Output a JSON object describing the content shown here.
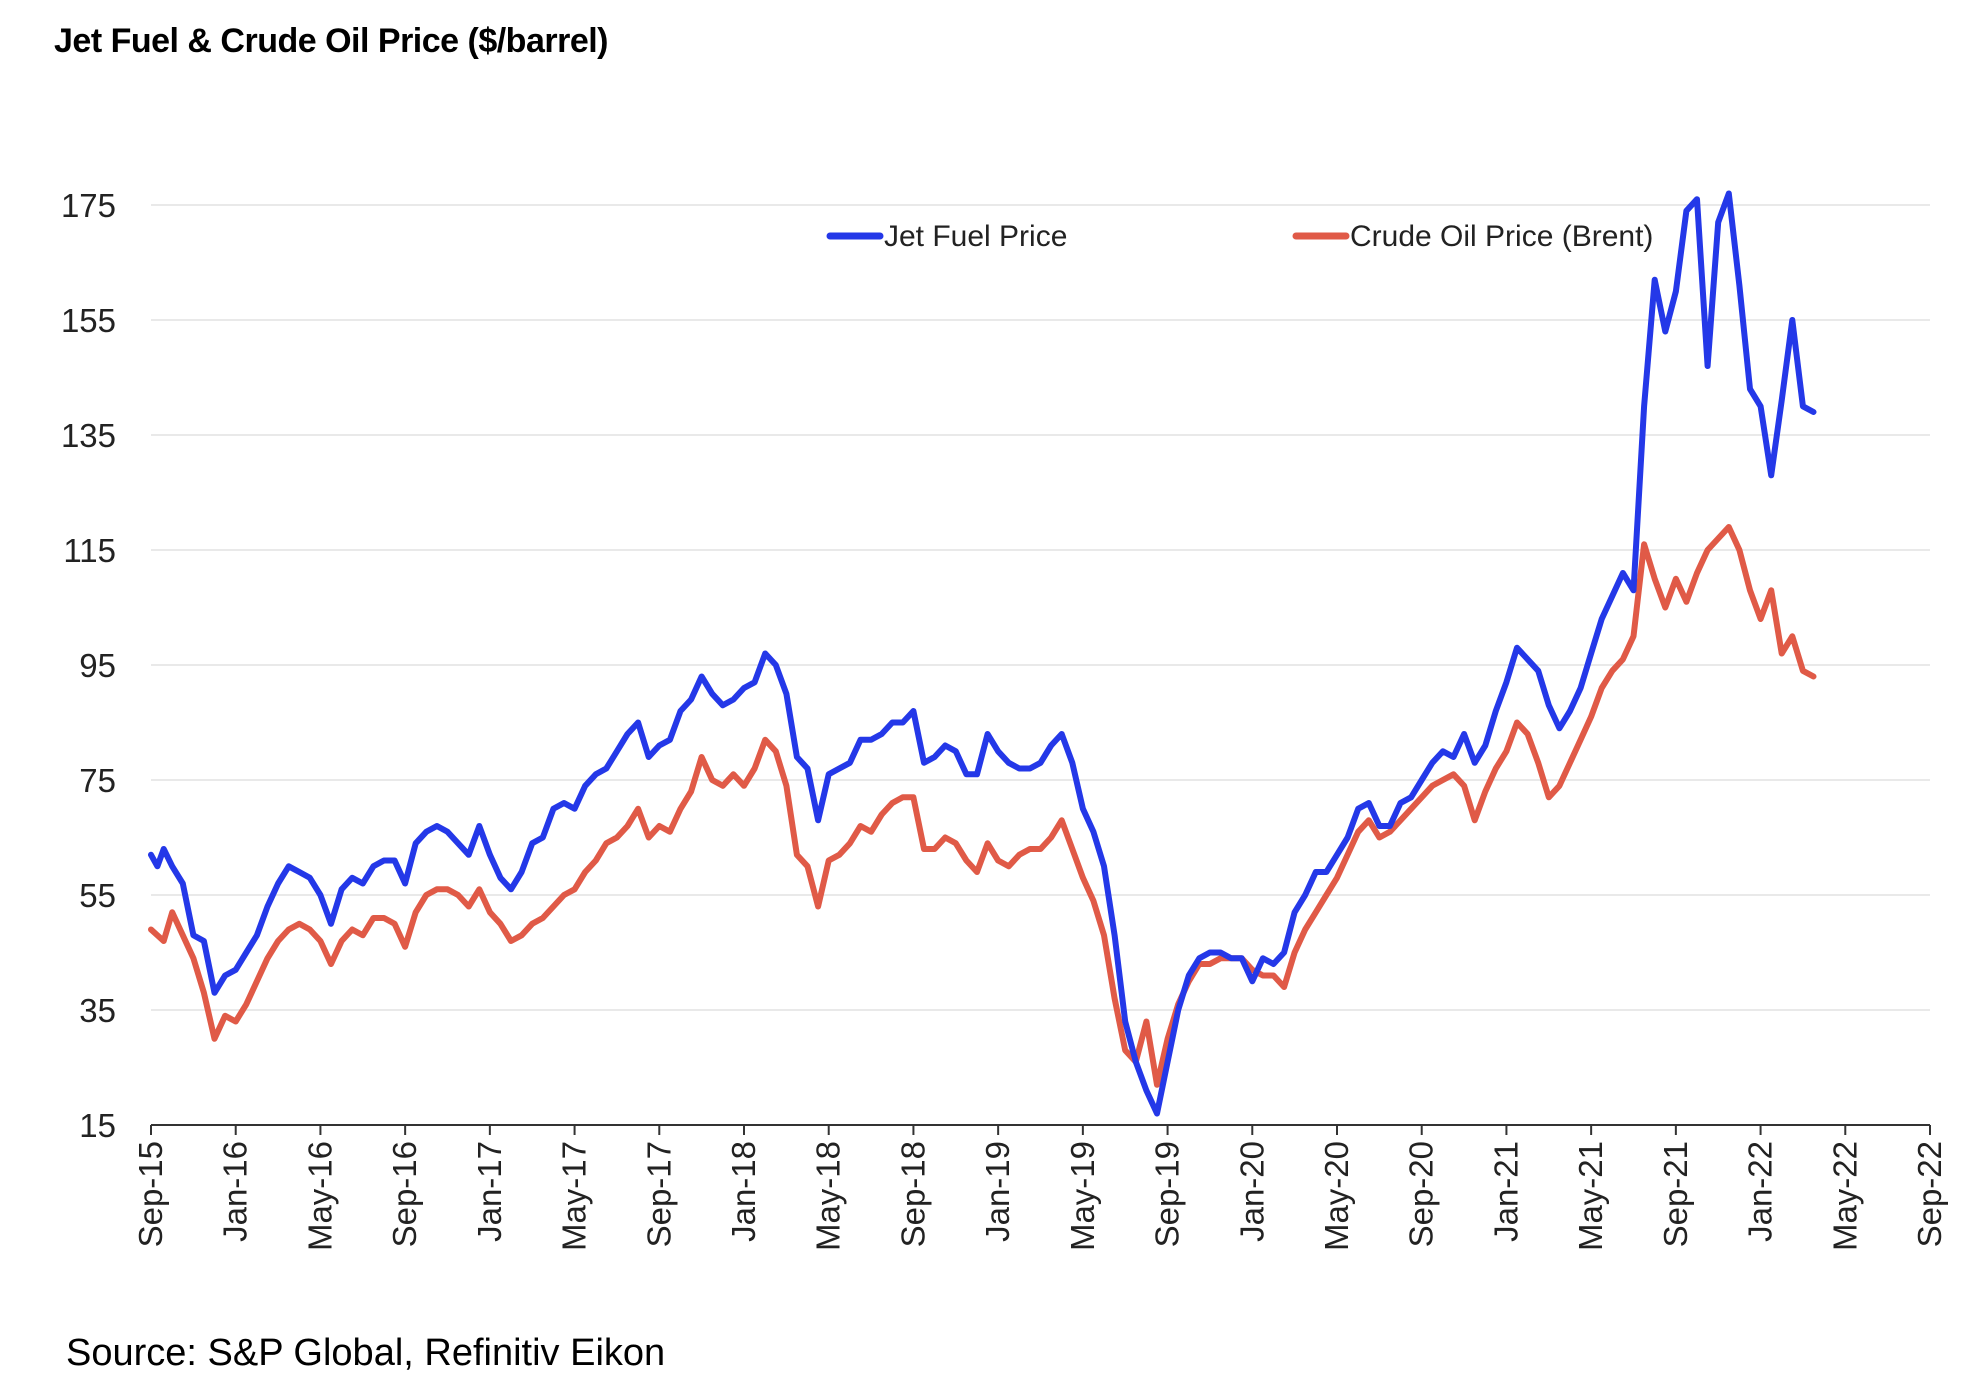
{
  "chart_data": {
    "type": "line",
    "title": "Jet Fuel & Crude Oil Price ($/barrel)",
    "source": "Source: S&P Global, Refinitiv Eikon",
    "xlabel": "",
    "ylabel": "",
    "ylim": [
      15,
      175
    ],
    "y_ticks": [
      "175",
      "155",
      "135",
      "115",
      "95",
      "75",
      "55",
      "35",
      "15"
    ],
    "x_ticks": [
      "Sep-15",
      "Jan-16",
      "May-16",
      "Sep-16",
      "Jan-17",
      "May-17",
      "Sep-17",
      "Jan-18",
      "May-18",
      "Sep-18",
      "Jan-19",
      "May-19",
      "Sep-19",
      "Jan-20",
      "May-20",
      "Sep-20",
      "Jan-21",
      "May-21",
      "Sep-21",
      "Jan-22",
      "May-22",
      "Sep-22"
    ],
    "grid": true,
    "legend": "top-right",
    "series": [
      {
        "name": "Jet Fuel Price",
        "color": "#2438e8",
        "points": [
          [
            0,
            62
          ],
          [
            0.3,
            60
          ],
          [
            0.6,
            63
          ],
          [
            1,
            60
          ],
          [
            1.5,
            57
          ],
          [
            2,
            48
          ],
          [
            2.5,
            47
          ],
          [
            3,
            38
          ],
          [
            3.5,
            41
          ],
          [
            4,
            42
          ],
          [
            4.5,
            45
          ],
          [
            5,
            48
          ],
          [
            5.5,
            53
          ],
          [
            6,
            57
          ],
          [
            6.5,
            60
          ],
          [
            7,
            59
          ],
          [
            7.5,
            58
          ],
          [
            8,
            55
          ],
          [
            8.5,
            50
          ],
          [
            9,
            56
          ],
          [
            9.5,
            58
          ],
          [
            10,
            57
          ],
          [
            10.5,
            60
          ],
          [
            11,
            61
          ],
          [
            11.5,
            61
          ],
          [
            12,
            57
          ],
          [
            12.5,
            64
          ],
          [
            13,
            66
          ],
          [
            13.5,
            67
          ],
          [
            14,
            66
          ],
          [
            14.5,
            64
          ],
          [
            15,
            62
          ],
          [
            15.5,
            67
          ],
          [
            16,
            62
          ],
          [
            16.5,
            58
          ],
          [
            17,
            56
          ],
          [
            17.5,
            59
          ],
          [
            18,
            64
          ],
          [
            18.5,
            65
          ],
          [
            19,
            70
          ],
          [
            19.5,
            71
          ],
          [
            20,
            70
          ],
          [
            20.5,
            74
          ],
          [
            21,
            76
          ],
          [
            21.5,
            77
          ],
          [
            22,
            80
          ],
          [
            22.5,
            83
          ],
          [
            23,
            85
          ],
          [
            23.5,
            79
          ],
          [
            24,
            81
          ],
          [
            24.5,
            82
          ],
          [
            25,
            87
          ],
          [
            25.5,
            89
          ],
          [
            26,
            93
          ],
          [
            26.5,
            90
          ],
          [
            27,
            88
          ],
          [
            27.5,
            89
          ],
          [
            28,
            91
          ],
          [
            28.5,
            92
          ],
          [
            29,
            97
          ],
          [
            29.5,
            95
          ],
          [
            30,
            90
          ],
          [
            30.5,
            79
          ],
          [
            31,
            77
          ],
          [
            31.5,
            68
          ],
          [
            32,
            76
          ],
          [
            32.5,
            77
          ],
          [
            33,
            78
          ],
          [
            33.5,
            82
          ],
          [
            34,
            82
          ],
          [
            34.5,
            83
          ],
          [
            35,
            85
          ],
          [
            35.5,
            85
          ],
          [
            36,
            87
          ],
          [
            36.5,
            78
          ],
          [
            37,
            79
          ],
          [
            37.5,
            81
          ],
          [
            38,
            80
          ],
          [
            38.5,
            76
          ],
          [
            39,
            76
          ],
          [
            39.5,
            83
          ],
          [
            40,
            80
          ],
          [
            40.5,
            78
          ],
          [
            41,
            77
          ],
          [
            41.5,
            77
          ],
          [
            42,
            78
          ],
          [
            42.5,
            81
          ],
          [
            43,
            83
          ],
          [
            43.5,
            78
          ],
          [
            44,
            70
          ],
          [
            44.5,
            66
          ],
          [
            45,
            60
          ],
          [
            45.5,
            48
          ],
          [
            46,
            33
          ],
          [
            46.5,
            26
          ],
          [
            47,
            21
          ],
          [
            47.5,
            17
          ],
          [
            48,
            26
          ],
          [
            48.5,
            35
          ],
          [
            49,
            41
          ],
          [
            49.5,
            44
          ],
          [
            50,
            45
          ],
          [
            50.5,
            45
          ],
          [
            51,
            44
          ],
          [
            51.5,
            44
          ],
          [
            52,
            40
          ],
          [
            52.5,
            44
          ],
          [
            53,
            43
          ],
          [
            53.5,
            45
          ],
          [
            54,
            52
          ],
          [
            54.5,
            55
          ],
          [
            55,
            59
          ],
          [
            55.5,
            59
          ],
          [
            56,
            62
          ],
          [
            56.5,
            65
          ],
          [
            57,
            70
          ],
          [
            57.5,
            71
          ],
          [
            58,
            67
          ],
          [
            58.5,
            67
          ],
          [
            59,
            71
          ],
          [
            59.5,
            72
          ],
          [
            60,
            75
          ],
          [
            60.5,
            78
          ],
          [
            61,
            80
          ],
          [
            61.5,
            79
          ],
          [
            62,
            83
          ],
          [
            62.5,
            78
          ],
          [
            63,
            81
          ],
          [
            63.5,
            87
          ],
          [
            64,
            92
          ],
          [
            64.5,
            98
          ],
          [
            65,
            96
          ],
          [
            65.5,
            94
          ],
          [
            66,
            88
          ],
          [
            66.5,
            84
          ],
          [
            67,
            87
          ],
          [
            67.5,
            91
          ],
          [
            68,
            97
          ],
          [
            68.5,
            103
          ],
          [
            69,
            107
          ],
          [
            69.5,
            111
          ],
          [
            70,
            108
          ],
          [
            70.5,
            140
          ],
          [
            71,
            162
          ],
          [
            71.5,
            153
          ],
          [
            72,
            160
          ],
          [
            72.5,
            174
          ],
          [
            73,
            176
          ],
          [
            73.5,
            147
          ],
          [
            74,
            172
          ],
          [
            74.5,
            177
          ],
          [
            75,
            161
          ],
          [
            75.5,
            143
          ],
          [
            76,
            140
          ],
          [
            76.5,
            128
          ],
          [
            77,
            141
          ],
          [
            77.5,
            155
          ],
          [
            78,
            140
          ],
          [
            78.5,
            139
          ]
        ]
      },
      {
        "name": "Crude Oil Price (Brent)",
        "color": "#e05a47",
        "points": [
          [
            0,
            49
          ],
          [
            0.3,
            48
          ],
          [
            0.6,
            47
          ],
          [
            1,
            52
          ],
          [
            1.5,
            48
          ],
          [
            2,
            44
          ],
          [
            2.5,
            38
          ],
          [
            3,
            30
          ],
          [
            3.5,
            34
          ],
          [
            4,
            33
          ],
          [
            4.5,
            36
          ],
          [
            5,
            40
          ],
          [
            5.5,
            44
          ],
          [
            6,
            47
          ],
          [
            6.5,
            49
          ],
          [
            7,
            50
          ],
          [
            7.5,
            49
          ],
          [
            8,
            47
          ],
          [
            8.5,
            43
          ],
          [
            9,
            47
          ],
          [
            9.5,
            49
          ],
          [
            10,
            48
          ],
          [
            10.5,
            51
          ],
          [
            11,
            51
          ],
          [
            11.5,
            50
          ],
          [
            12,
            46
          ],
          [
            12.5,
            52
          ],
          [
            13,
            55
          ],
          [
            13.5,
            56
          ],
          [
            14,
            56
          ],
          [
            14.5,
            55
          ],
          [
            15,
            53
          ],
          [
            15.5,
            56
          ],
          [
            16,
            52
          ],
          [
            16.5,
            50
          ],
          [
            17,
            47
          ],
          [
            17.5,
            48
          ],
          [
            18,
            50
          ],
          [
            18.5,
            51
          ],
          [
            19,
            53
          ],
          [
            19.5,
            55
          ],
          [
            20,
            56
          ],
          [
            20.5,
            59
          ],
          [
            21,
            61
          ],
          [
            21.5,
            64
          ],
          [
            22,
            65
          ],
          [
            22.5,
            67
          ],
          [
            23,
            70
          ],
          [
            23.5,
            65
          ],
          [
            24,
            67
          ],
          [
            24.5,
            66
          ],
          [
            25,
            70
          ],
          [
            25.5,
            73
          ],
          [
            26,
            79
          ],
          [
            26.5,
            75
          ],
          [
            27,
            74
          ],
          [
            27.5,
            76
          ],
          [
            28,
            74
          ],
          [
            28.5,
            77
          ],
          [
            29,
            82
          ],
          [
            29.5,
            80
          ],
          [
            30,
            74
          ],
          [
            30.5,
            62
          ],
          [
            31,
            60
          ],
          [
            31.5,
            53
          ],
          [
            32,
            61
          ],
          [
            32.5,
            62
          ],
          [
            33,
            64
          ],
          [
            33.5,
            67
          ],
          [
            34,
            66
          ],
          [
            34.5,
            69
          ],
          [
            35,
            71
          ],
          [
            35.5,
            72
          ],
          [
            36,
            72
          ],
          [
            36.5,
            63
          ],
          [
            37,
            63
          ],
          [
            37.5,
            65
          ],
          [
            38,
            64
          ],
          [
            38.5,
            61
          ],
          [
            39,
            59
          ],
          [
            39.5,
            64
          ],
          [
            40,
            61
          ],
          [
            40.5,
            60
          ],
          [
            41,
            62
          ],
          [
            41.5,
            63
          ],
          [
            42,
            63
          ],
          [
            42.5,
            65
          ],
          [
            43,
            68
          ],
          [
            43.5,
            63
          ],
          [
            44,
            58
          ],
          [
            44.5,
            54
          ],
          [
            45,
            48
          ],
          [
            45.5,
            37
          ],
          [
            46,
            28
          ],
          [
            46.5,
            26
          ],
          [
            47,
            33
          ],
          [
            47.5,
            22
          ],
          [
            48,
            30
          ],
          [
            48.5,
            36
          ],
          [
            49,
            40
          ],
          [
            49.5,
            43
          ],
          [
            50,
            43
          ],
          [
            50.5,
            44
          ],
          [
            51,
            44
          ],
          [
            51.5,
            44
          ],
          [
            52,
            42
          ],
          [
            52.5,
            41
          ],
          [
            53,
            41
          ],
          [
            53.5,
            39
          ],
          [
            54,
            45
          ],
          [
            54.5,
            49
          ],
          [
            55,
            52
          ],
          [
            55.5,
            55
          ],
          [
            56,
            58
          ],
          [
            56.5,
            62
          ],
          [
            57,
            66
          ],
          [
            57.5,
            68
          ],
          [
            58,
            65
          ],
          [
            58.5,
            66
          ],
          [
            59,
            68
          ],
          [
            59.5,
            70
          ],
          [
            60,
            72
          ],
          [
            60.5,
            74
          ],
          [
            61,
            75
          ],
          [
            61.5,
            76
          ],
          [
            62,
            74
          ],
          [
            62.5,
            68
          ],
          [
            63,
            73
          ],
          [
            63.5,
            77
          ],
          [
            64,
            80
          ],
          [
            64.5,
            85
          ],
          [
            65,
            83
          ],
          [
            65.5,
            78
          ],
          [
            66,
            72
          ],
          [
            66.5,
            74
          ],
          [
            67,
            78
          ],
          [
            67.5,
            82
          ],
          [
            68,
            86
          ],
          [
            68.5,
            91
          ],
          [
            69,
            94
          ],
          [
            69.5,
            96
          ],
          [
            70,
            100
          ],
          [
            70.5,
            116
          ],
          [
            71,
            110
          ],
          [
            71.5,
            105
          ],
          [
            72,
            110
          ],
          [
            72.5,
            106
          ],
          [
            73,
            111
          ],
          [
            73.5,
            115
          ],
          [
            74,
            117
          ],
          [
            74.5,
            119
          ],
          [
            75,
            115
          ],
          [
            75.5,
            108
          ],
          [
            76,
            103
          ],
          [
            76.5,
            108
          ],
          [
            77,
            97
          ],
          [
            77.5,
            100
          ],
          [
            78,
            94
          ],
          [
            78.5,
            93
          ]
        ]
      }
    ]
  }
}
